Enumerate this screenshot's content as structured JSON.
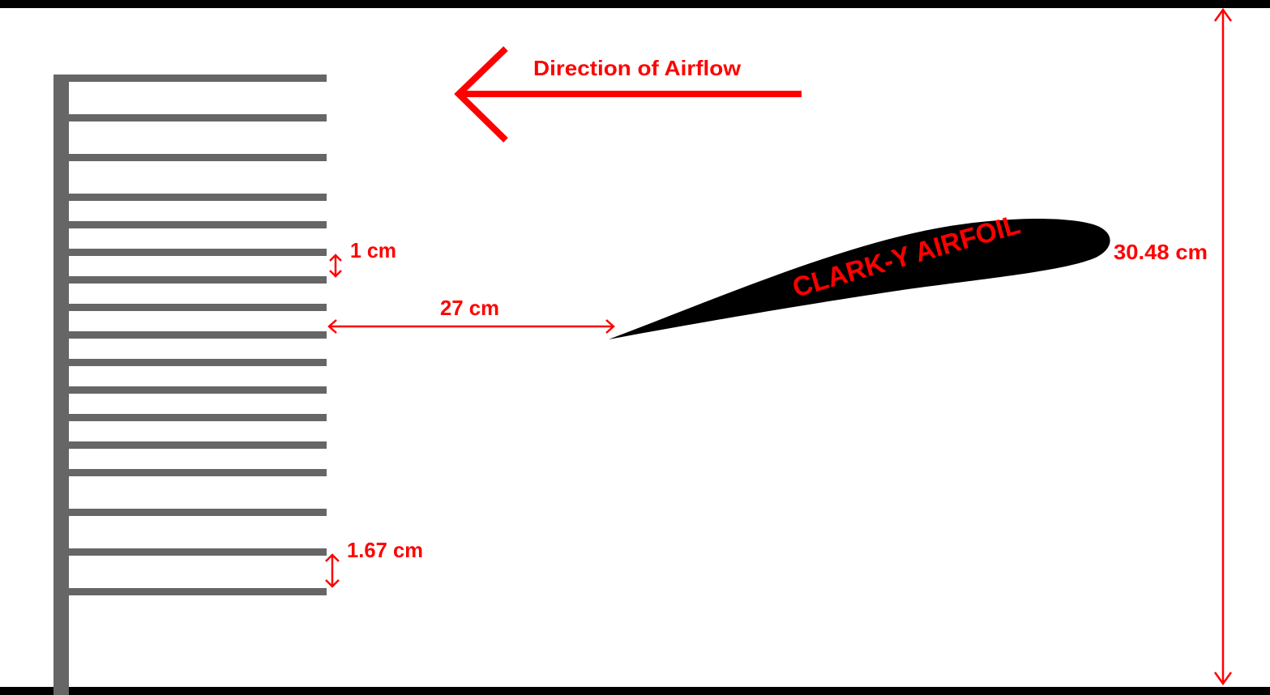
{
  "labels": {
    "airflow": "Direction of Airflow",
    "airfoil": "CLARK-Y AIRFOIL",
    "spacing_small": "1 cm",
    "spacing_large": "1.67 cm",
    "distance": "27 cm",
    "height": "30.48 cm"
  },
  "colors": {
    "annotation": "#ff0000",
    "comb": "#666666",
    "airfoil": "#000000",
    "border": "#000000"
  },
  "comb": {
    "tine_count": 17
  }
}
